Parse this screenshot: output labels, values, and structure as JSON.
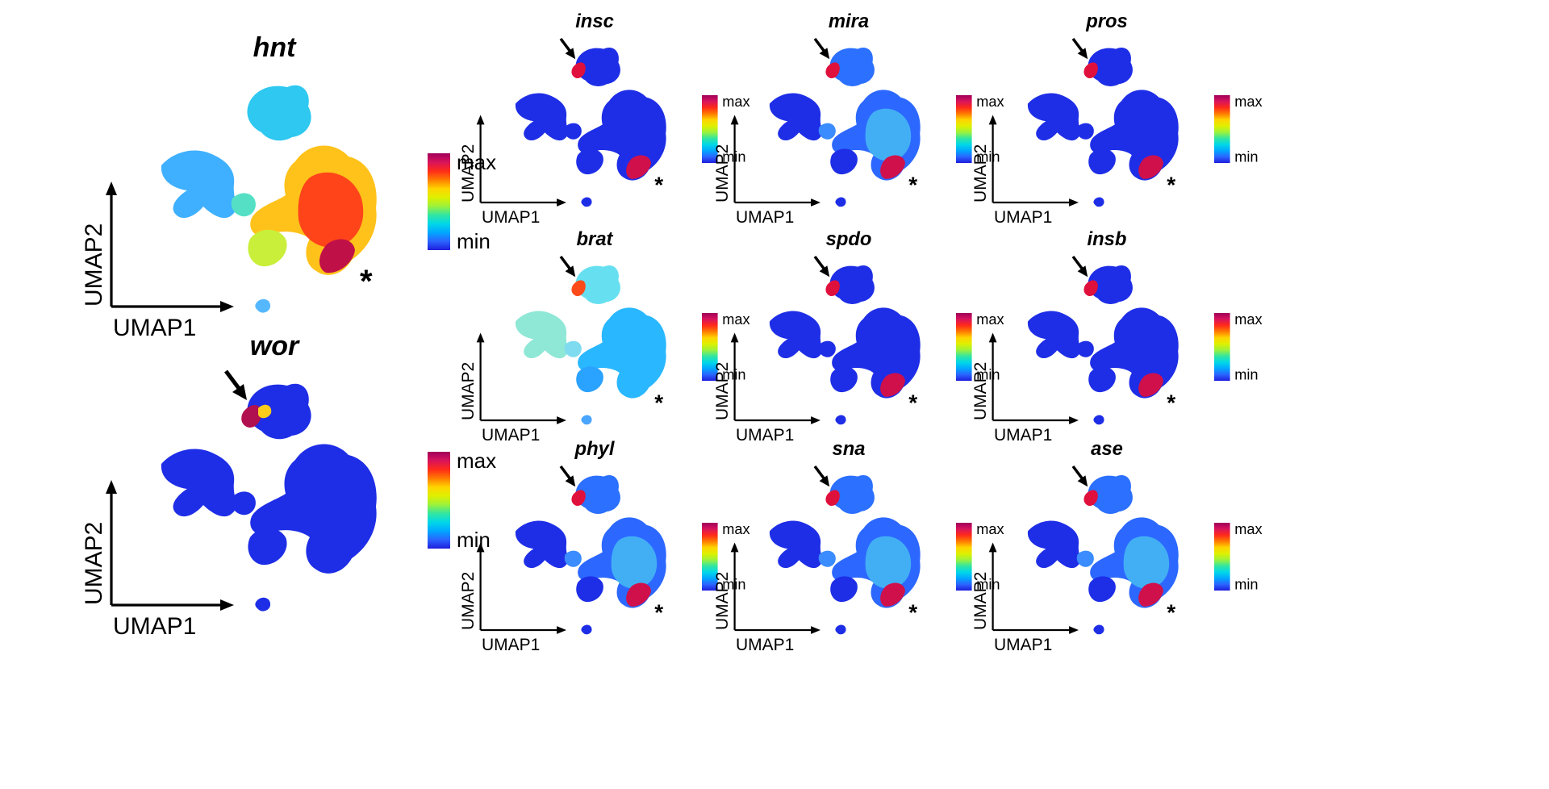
{
  "figure": {
    "axis_labels": {
      "x": "UMAP1",
      "y": "UMAP2"
    },
    "colorbar": {
      "max_label": "max",
      "min_label": "min",
      "gradient": [
        "#ffffff",
        "#a0005a",
        "#d8145c",
        "#ff2a1a",
        "#ff7a00",
        "#ffd400",
        "#dff000",
        "#9df23a",
        "#33e6a0",
        "#00d8e8",
        "#00a8ff",
        "#2b64ff",
        "#1e1edc"
      ]
    },
    "marker_symbols": {
      "asterisk": "*",
      "arrow": "arrow"
    },
    "colors": {
      "background": "#ffffff",
      "low_expression": "#1e2ee6",
      "text": "#000000"
    }
  },
  "chart_data": [
    {
      "type": "scatter",
      "title": "hnt",
      "pattern": "hnt",
      "has_arrow": false,
      "has_asterisk": true
    },
    {
      "type": "scatter",
      "title": "wor",
      "pattern": "wor",
      "has_arrow": true,
      "has_asterisk": false
    },
    {
      "type": "scatter",
      "title": "insc",
      "pattern": "focal",
      "has_arrow": true,
      "has_asterisk": true
    },
    {
      "type": "scatter",
      "title": "mira",
      "pattern": "broad",
      "has_arrow": true,
      "has_asterisk": true
    },
    {
      "type": "scatter",
      "title": "pros",
      "pattern": "focal",
      "has_arrow": true,
      "has_asterisk": true
    },
    {
      "type": "scatter",
      "title": "brat",
      "pattern": "uniform",
      "has_arrow": true,
      "has_asterisk": true
    },
    {
      "type": "scatter",
      "title": "spdo",
      "pattern": "focal",
      "has_arrow": true,
      "has_asterisk": true
    },
    {
      "type": "scatter",
      "title": "insb",
      "pattern": "focal",
      "has_arrow": true,
      "has_asterisk": true
    },
    {
      "type": "scatter",
      "title": "phyl",
      "pattern": "broad",
      "has_arrow": true,
      "has_asterisk": true
    },
    {
      "type": "scatter",
      "title": "sna",
      "pattern": "broad",
      "has_arrow": true,
      "has_asterisk": true
    },
    {
      "type": "scatter",
      "title": "ase",
      "pattern": "broad",
      "has_arrow": true,
      "has_asterisk": true
    }
  ]
}
